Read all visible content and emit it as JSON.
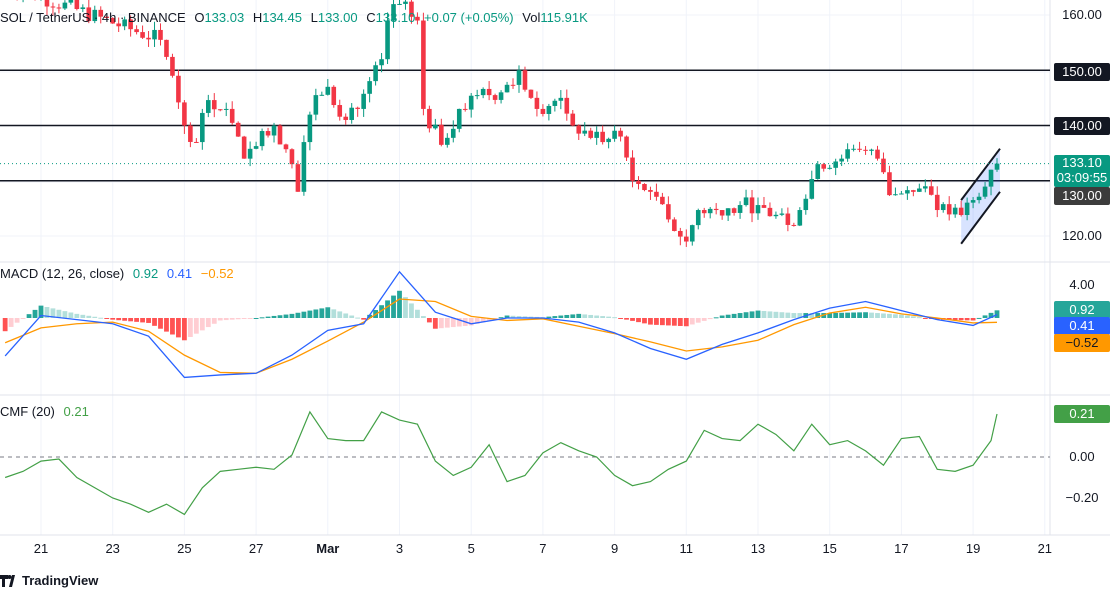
{
  "header": {
    "symbol": "SOL / TetherUS · 4h · BINANCE",
    "open_label": "O",
    "open": "133.03",
    "high_label": "H",
    "high": "134.45",
    "low_label": "L",
    "low": "133.00",
    "close_label": "C",
    "close": "133.10",
    "change": "+0.07 (+0.05%)",
    "vol_label": "Vol",
    "vol": "115.91K"
  },
  "colors": {
    "up": "#089981",
    "down": "#f23645",
    "macd": "#2962ff",
    "signal": "#ff9800",
    "cmf": "#43a047",
    "channel": "#2962ff"
  },
  "price_axis": {
    "ticks": [
      "160.00",
      "120.00"
    ],
    "levels": [
      "150.00",
      "140.00",
      "130.00"
    ],
    "last_price": "133.10",
    "countdown": "03:09:55"
  },
  "macd": {
    "title": "MACD (12, 26, close)",
    "hist_value": "0.92",
    "macd_value": "0.41",
    "signal_value": "−0.52",
    "axis_tick": "4.00"
  },
  "cmf": {
    "title": "CMF (20)",
    "value": "0.21",
    "axis_ticks": [
      "0.00",
      "−0.20"
    ]
  },
  "time_axis": [
    {
      "label": "21",
      "date": "Feb 21 00:00"
    },
    {
      "label": "23",
      "date": "Feb 23 00:00"
    },
    {
      "label": "25",
      "date": "Feb 25 00:00"
    },
    {
      "label": "27",
      "date": "Feb 27 00:00"
    },
    {
      "label": "Mar",
      "date": "Mar 1 00:00"
    },
    {
      "label": "3",
      "date": "Mar 3 00:00"
    },
    {
      "label": "5",
      "date": "Mar 5 00:00"
    },
    {
      "label": "7",
      "date": "Mar 7 00:00"
    },
    {
      "label": "9",
      "date": "Mar 9 00:00"
    },
    {
      "label": "11",
      "date": "Mar 11 00:00"
    },
    {
      "label": "13",
      "date": "Mar 13 00:00"
    },
    {
      "label": "15",
      "date": "Mar 15 00:00"
    },
    {
      "label": "17",
      "date": "Mar 17 00:00"
    },
    {
      "label": "19",
      "date": "Mar 19 00:00"
    },
    {
      "label": "21",
      "date": "Mar 21 00:00"
    }
  ],
  "footer": {
    "brand": "TradingView"
  },
  "chart_data": [
    {
      "type": "candlestick",
      "title": "SOL / TetherUS · 4h · BINANCE",
      "ylim": [
        116,
        163
      ],
      "horizontal_levels": [
        150,
        140,
        130
      ],
      "channel": [
        {
          "from": {
            "date": "Mar 18 16:00",
            "price": 126.5
          },
          "to": {
            "date": "Mar 19 18:00",
            "price": 135.8
          }
        },
        {
          "from": {
            "date": "Mar 18 16:00",
            "price": 118.6
          },
          "to": {
            "date": "Mar 19 18:00",
            "price": 128.0
          }
        }
      ],
      "closes": [
        {
          "date": "Feb 19 20:00",
          "close": 166
        },
        {
          "date": "Feb 24 08:00",
          "close": 155.5
        },
        {
          "date": "Feb 24 16:00",
          "close": 149
        },
        {
          "date": "Feb 25 00:00",
          "close": 140
        },
        {
          "date": "Feb 25 08:00",
          "close": 137
        },
        {
          "date": "Feb 25 16:00",
          "close": 144.6
        },
        {
          "date": "Feb 26 04:00",
          "close": 143
        },
        {
          "date": "Feb 26 16:00",
          "close": 134
        },
        {
          "date": "Feb 27 04:00",
          "close": 139
        },
        {
          "date": "Feb 27 12:00",
          "close": 140
        },
        {
          "date": "Feb 28 00:00",
          "close": 133
        },
        {
          "date": "Feb 28 04:00",
          "close": 128
        },
        {
          "date": "Feb 28 08:00",
          "close": 137
        },
        {
          "date": "Feb 28 16:00",
          "close": 145.5
        },
        {
          "date": "Mar 1 00:00",
          "close": 147
        },
        {
          "date": "Mar 1 12:00",
          "close": 141
        },
        {
          "date": "Mar 1 20:00",
          "close": 143
        },
        {
          "date": "Mar 2 12:00",
          "close": 152
        },
        {
          "date": "Mar 2 16:00",
          "close": 159
        },
        {
          "date": "Mar 3 00:00",
          "close": 162
        },
        {
          "date": "Mar 3 12:00",
          "close": 159
        },
        {
          "date": "Mar 3 16:00",
          "close": 143
        },
        {
          "date": "Mar 4 04:00",
          "close": 136.5
        },
        {
          "date": "Mar 4 16:00",
          "close": 143
        },
        {
          "date": "Mar 5 04:00",
          "close": 145.5
        },
        {
          "date": "Mar 5 20:00",
          "close": 146
        },
        {
          "date": "Mar 6 08:00",
          "close": 150
        },
        {
          "date": "Mar 6 20:00",
          "close": 143
        },
        {
          "date": "Mar 7 12:00",
          "close": 145
        },
        {
          "date": "Mar 7 20:00",
          "close": 140
        },
        {
          "date": "Mar 8 16:00",
          "close": 137
        },
        {
          "date": "Mar 9 04:00",
          "close": 138
        },
        {
          "date": "Mar 9 12:00",
          "close": 130
        },
        {
          "date": "Mar 10 00:00",
          "close": 128
        },
        {
          "date": "Mar 10 12:00",
          "close": 123
        },
        {
          "date": "Mar 11 00:00",
          "close": 119
        },
        {
          "date": "Mar 11 08:00",
          "close": 124.7
        },
        {
          "date": "Mar 11 20:00",
          "close": 124.7
        },
        {
          "date": "Mar 12 12:00",
          "close": 125.6
        },
        {
          "date": "Mar 13 00:00",
          "close": 125.6
        },
        {
          "date": "Mar 13 20:00",
          "close": 122
        },
        {
          "date": "Mar 14 04:00",
          "close": 124.7
        },
        {
          "date": "Mar 14 16:00",
          "close": 133
        },
        {
          "date": "Mar 15 08:00",
          "close": 134
        },
        {
          "date": "Mar 15 20:00",
          "close": 135.6
        },
        {
          "date": "Mar 16 08:00",
          "close": 134
        },
        {
          "date": "Mar 16 16:00",
          "close": 127.4
        },
        {
          "date": "Mar 17 04:00",
          "close": 128.3
        },
        {
          "date": "Mar 17 16:00",
          "close": 129
        },
        {
          "date": "Mar 18 00:00",
          "close": 124.7
        },
        {
          "date": "Mar 18 16:00",
          "close": 123.8
        },
        {
          "date": "Mar 19 00:00",
          "close": 126.5
        },
        {
          "date": "Mar 19 12:00",
          "close": 132
        },
        {
          "date": "Mar 19 16:00",
          "close": 133.1
        }
      ]
    },
    {
      "type": "line",
      "title": "MACD (12, 26, close)",
      "ylim": [
        -8,
        6
      ],
      "dates": [
        "Feb 20 00:00",
        "Feb 21 00:00",
        "Feb 22 00:00",
        "Feb 23 00:00",
        "Feb 24 00:00",
        "Feb 25 00:00",
        "Feb 26 00:00",
        "Feb 27 00:00",
        "Feb 28 00:00",
        "Mar 1 00:00",
        "Mar 2 00:00",
        "Mar 3 00:00",
        "Mar 4 00:00",
        "Mar 5 00:00",
        "Mar 6 00:00",
        "Mar 7 00:00",
        "Mar 8 00:00",
        "Mar 9 00:00",
        "Mar 10 00:00",
        "Mar 11 00:00",
        "Mar 12 00:00",
        "Mar 13 00:00",
        "Mar 14 00:00",
        "Mar 15 00:00",
        "Mar 16 00:00",
        "Mar 17 00:00",
        "Mar 18 00:00",
        "Mar 19 00:00",
        "Mar 19 16:00"
      ],
      "macd": [
        -4.6,
        0.3,
        -0.2,
        -0.7,
        -2.2,
        -7.2,
        -6.9,
        -6.7,
        -4.5,
        -1.5,
        -0.7,
        5.6,
        0.7,
        -0.7,
        0,
        0,
        -0.5,
        -1.8,
        -3.7,
        -5.0,
        -3.2,
        -1.8,
        -0.2,
        1.2,
        2.0,
        0.9,
        -0.2,
        -0.9,
        0.41
      ],
      "signal": [
        -3.0,
        -1.2,
        -0.7,
        -0.5,
        -1.6,
        -4.5,
        -6.6,
        -6.7,
        -5.0,
        -2.8,
        -0.5,
        2.3,
        2.0,
        0.2,
        -0.3,
        -0.1,
        -1.0,
        -1.9,
        -2.9,
        -4.0,
        -3.5,
        -2.7,
        -0.8,
        0.6,
        1.3,
        0.5,
        0,
        -0.6,
        -0.52
      ]
    },
    {
      "type": "line",
      "title": "CMF (20)",
      "ylim": [
        -0.3,
        0.25
      ],
      "baseline": 0,
      "dates": [
        "Feb 20 00:00",
        "Feb 20 12:00",
        "Feb 21 00:00",
        "Feb 21 12:00",
        "Feb 22 00:00",
        "Feb 22 12:00",
        "Feb 23 00:00",
        "Feb 23 12:00",
        "Feb 24 00:00",
        "Feb 24 12:00",
        "Feb 25 00:00",
        "Feb 25 12:00",
        "Feb 26 00:00",
        "Feb 26 12:00",
        "Feb 27 00:00",
        "Feb 27 12:00",
        "Feb 28 00:00",
        "Feb 28 12:00",
        "Mar 1 00:00",
        "Mar 1 12:00",
        "Mar 2 00:00",
        "Mar 2 12:00",
        "Mar 3 00:00",
        "Mar 3 12:00",
        "Mar 4 00:00",
        "Mar 4 12:00",
        "Mar 5 00:00",
        "Mar 5 12:00",
        "Mar 6 00:00",
        "Mar 6 12:00",
        "Mar 7 00:00",
        "Mar 7 12:00",
        "Mar 8 00:00",
        "Mar 8 12:00",
        "Mar 9 00:00",
        "Mar 9 12:00",
        "Mar 10 00:00",
        "Mar 10 12:00",
        "Mar 11 00:00",
        "Mar 11 12:00",
        "Mar 12 00:00",
        "Mar 12 12:00",
        "Mar 13 00:00",
        "Mar 13 12:00",
        "Mar 14 00:00",
        "Mar 14 12:00",
        "Mar 15 00:00",
        "Mar 15 12:00",
        "Mar 16 00:00",
        "Mar 16 12:00",
        "Mar 17 00:00",
        "Mar 17 12:00",
        "Mar 18 00:00",
        "Mar 18 12:00",
        "Mar 19 00:00",
        "Mar 19 12:00",
        "Mar 19 16:00"
      ],
      "values": [
        -0.1,
        -0.07,
        -0.02,
        -0.01,
        -0.1,
        -0.15,
        -0.2,
        -0.23,
        -0.27,
        -0.23,
        -0.28,
        -0.15,
        -0.07,
        -0.06,
        -0.05,
        -0.06,
        0.01,
        0.22,
        0.09,
        0.08,
        0.08,
        0.22,
        0.18,
        0.16,
        -0.02,
        -0.09,
        -0.05,
        0.06,
        -0.12,
        -0.09,
        0.02,
        0.07,
        0.03,
        0.0,
        -0.09,
        -0.14,
        -0.12,
        -0.06,
        -0.02,
        0.13,
        0.09,
        0.08,
        0.16,
        0.11,
        0.03,
        0.16,
        0.06,
        0.08,
        0.03,
        -0.04,
        0.09,
        0.1,
        -0.06,
        -0.07,
        -0.04,
        0.08,
        0.21
      ]
    }
  ]
}
